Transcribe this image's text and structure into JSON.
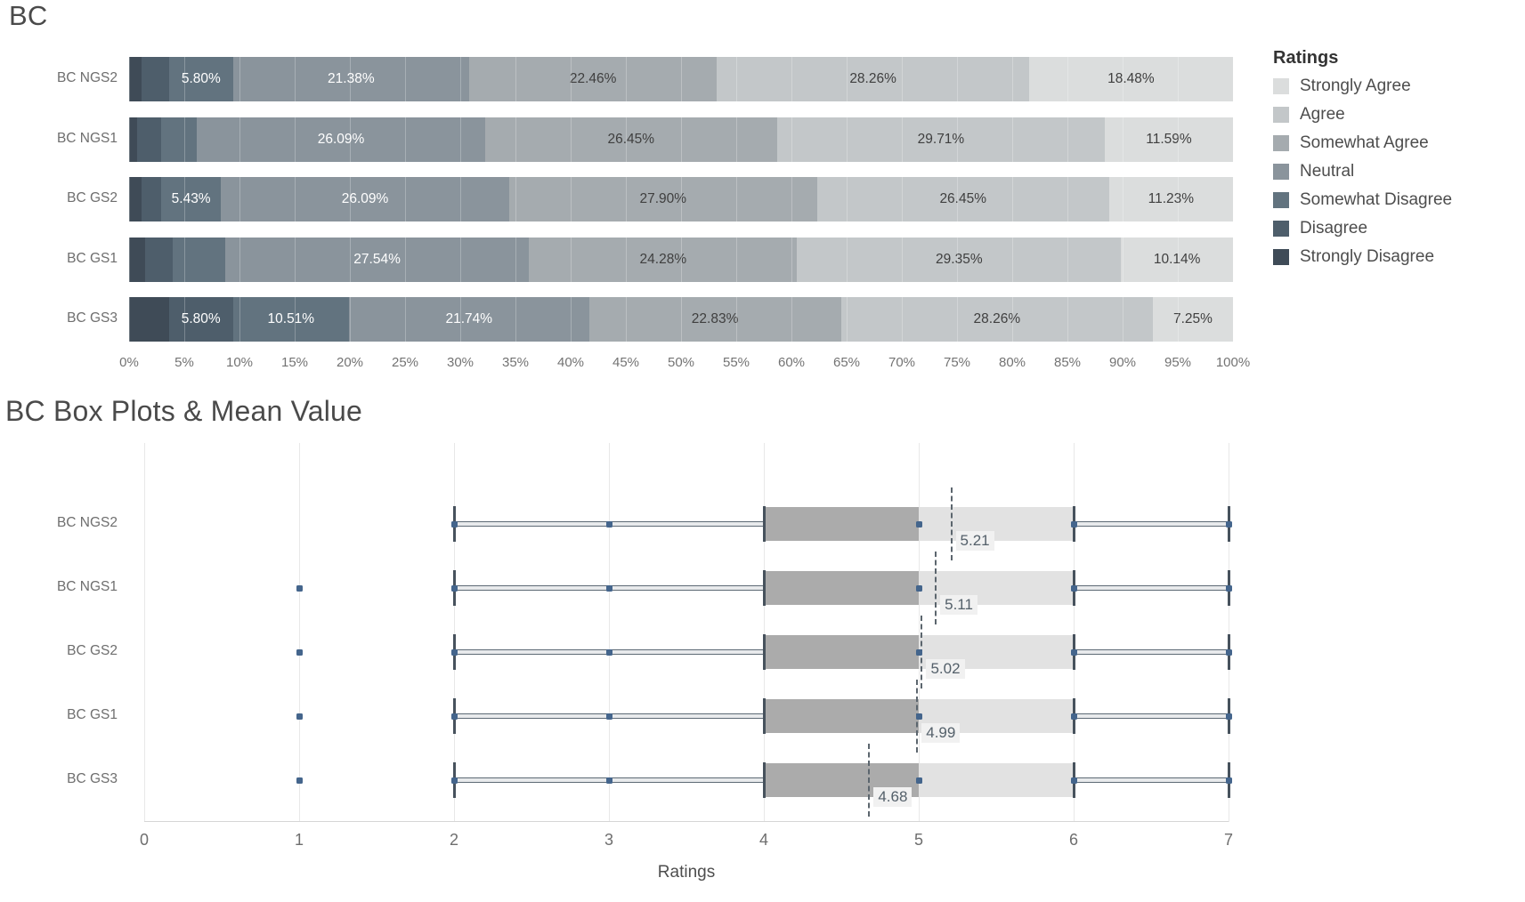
{
  "page": {
    "background": "#ffffff"
  },
  "chart_data": [
    {
      "type": "bar",
      "orientation": "horizontal_stacked",
      "title": "BC",
      "x_axis": {
        "range": [
          0,
          100
        ],
        "ticks": [
          "0%",
          "5%",
          "10%",
          "15%",
          "20%",
          "25%",
          "30%",
          "35%",
          "40%",
          "45%",
          "50%",
          "55%",
          "60%",
          "65%",
          "70%",
          "75%",
          "80%",
          "85%",
          "90%",
          "95%",
          "100%"
        ]
      },
      "legend": {
        "title": "Ratings",
        "position": "right",
        "items": [
          {
            "label": "Strongly Agree",
            "color": "#dbdddd"
          },
          {
            "label": "Agree",
            "color": "#c3c7c9"
          },
          {
            "label": "Somewhat Agree",
            "color": "#a5abaf"
          },
          {
            "label": "Neutral",
            "color": "#8a949c"
          },
          {
            "label": "Somewhat Disagree",
            "color": "#62737f"
          },
          {
            "label": "Disagree",
            "color": "#4e5e6b"
          },
          {
            "label": "Strongly Disagree",
            "color": "#3f4b57"
          }
        ]
      },
      "colors": {
        "Strongly Disagree": "#3f4b57",
        "Disagree": "#4e5e6b",
        "Somewhat Disagree": "#62737f",
        "Neutral": "#8a949c",
        "Somewhat Agree": "#a5abaf",
        "Agree": "#c3c7c9",
        "Strongly Agree": "#dbdddd"
      },
      "white_label_categories": [
        "Strongly Disagree",
        "Disagree",
        "Somewhat Disagree",
        "Neutral"
      ],
      "label_text_colors": {
        "on_dark": "#ffffff",
        "on_light": "#3f3f3f"
      },
      "rows": [
        {
          "label": "BC NGS2",
          "segments": [
            {
              "category": "Strongly Disagree",
              "value": 1.09,
              "label": ""
            },
            {
              "category": "Disagree",
              "value": 2.53,
              "label": ""
            },
            {
              "category": "Somewhat Disagree",
              "value": 5.8,
              "label": "5.80%"
            },
            {
              "category": "Neutral",
              "value": 21.38,
              "label": "21.38%"
            },
            {
              "category": "Somewhat Agree",
              "value": 22.46,
              "label": "22.46%"
            },
            {
              "category": "Agree",
              "value": 28.26,
              "label": "28.26%"
            },
            {
              "category": "Strongly Agree",
              "value": 18.48,
              "label": "18.48%"
            }
          ]
        },
        {
          "label": "BC NGS1",
          "segments": [
            {
              "category": "Strongly Disagree",
              "value": 0.72,
              "label": ""
            },
            {
              "category": "Disagree",
              "value": 2.17,
              "label": ""
            },
            {
              "category": "Somewhat Disagree",
              "value": 3.26,
              "label": ""
            },
            {
              "category": "Neutral",
              "value": 26.09,
              "label": "26.09%"
            },
            {
              "category": "Somewhat Agree",
              "value": 26.45,
              "label": "26.45%"
            },
            {
              "category": "Agree",
              "value": 29.71,
              "label": "29.71%"
            },
            {
              "category": "Strongly Agree",
              "value": 11.59,
              "label": "11.59%"
            }
          ]
        },
        {
          "label": "BC GS2",
          "segments": [
            {
              "category": "Strongly Disagree",
              "value": 1.09,
              "label": ""
            },
            {
              "category": "Disagree",
              "value": 1.81,
              "label": ""
            },
            {
              "category": "Somewhat Disagree",
              "value": 5.43,
              "label": "5.43%"
            },
            {
              "category": "Neutral",
              "value": 26.09,
              "label": "26.09%"
            },
            {
              "category": "Somewhat Agree",
              "value": 27.9,
              "label": "27.90%"
            },
            {
              "category": "Agree",
              "value": 26.45,
              "label": "26.45%"
            },
            {
              "category": "Strongly Agree",
              "value": 11.23,
              "label": "11.23%"
            }
          ]
        },
        {
          "label": "BC GS1",
          "segments": [
            {
              "category": "Strongly Disagree",
              "value": 1.45,
              "label": ""
            },
            {
              "category": "Disagree",
              "value": 2.54,
              "label": ""
            },
            {
              "category": "Somewhat Disagree",
              "value": 4.71,
              "label": ""
            },
            {
              "category": "Neutral",
              "value": 27.54,
              "label": "27.54%"
            },
            {
              "category": "Somewhat Agree",
              "value": 24.28,
              "label": "24.28%"
            },
            {
              "category": "Agree",
              "value": 29.35,
              "label": "29.35%"
            },
            {
              "category": "Strongly Agree",
              "value": 10.14,
              "label": "10.14%"
            }
          ]
        },
        {
          "label": "BC GS3",
          "segments": [
            {
              "category": "Strongly Disagree",
              "value": 3.61,
              "label": ""
            },
            {
              "category": "Disagree",
              "value": 5.8,
              "label": "5.80%"
            },
            {
              "category": "Somewhat Disagree",
              "value": 10.51,
              "label": "10.51%"
            },
            {
              "category": "Neutral",
              "value": 21.74,
              "label": "21.74%"
            },
            {
              "category": "Somewhat Agree",
              "value": 22.83,
              "label": "22.83%"
            },
            {
              "category": "Agree",
              "value": 28.26,
              "label": "28.26%"
            },
            {
              "category": "Strongly Agree",
              "value": 7.25,
              "label": "7.25%"
            }
          ]
        }
      ]
    },
    {
      "type": "box",
      "title": "BC Box Plots & Mean Value",
      "xlabel": "Ratings",
      "x_range": [
        0,
        7
      ],
      "x_ticks": [
        "0",
        "1",
        "2",
        "3",
        "4",
        "5",
        "6",
        "7"
      ],
      "colors": {
        "box_lower": "#ababab",
        "box_upper": "#e2e2e2",
        "whisker": "#5d6a75",
        "cap": "#47525d",
        "point": "#44658c",
        "mean_line": "#5c666e",
        "mean_label_bg": "#f1f1f1",
        "mean_label_text": "#54606a"
      },
      "rows": [
        {
          "label": "BC NGS2",
          "low": 2,
          "q1": 4,
          "median": 5,
          "q3": 6,
          "high": 7,
          "mean": 5.21,
          "mean_label": "5.21",
          "points": [
            2,
            3,
            5,
            6,
            7
          ]
        },
        {
          "label": "BC NGS1",
          "low": 2,
          "q1": 4,
          "median": 5,
          "q3": 6,
          "high": 7,
          "mean": 5.11,
          "mean_label": "5.11",
          "points": [
            1,
            2,
            3,
            5,
            6,
            7
          ]
        },
        {
          "label": "BC GS2",
          "low": 2,
          "q1": 4,
          "median": 5,
          "q3": 6,
          "high": 7,
          "mean": 5.02,
          "mean_label": "5.02",
          "points": [
            1,
            2,
            3,
            5,
            6,
            7
          ]
        },
        {
          "label": "BC GS1",
          "low": 2,
          "q1": 4,
          "median": 5,
          "q3": 6,
          "high": 7,
          "mean": 4.99,
          "mean_label": "4.99",
          "points": [
            1,
            2,
            3,
            5,
            6,
            7
          ]
        },
        {
          "label": "BC GS3",
          "low": 2,
          "q1": 4,
          "median": 5,
          "q3": 6,
          "high": 7,
          "mean": 4.68,
          "mean_label": "4.68",
          "points": [
            1,
            2,
            3,
            5,
            6,
            7
          ]
        }
      ]
    }
  ]
}
